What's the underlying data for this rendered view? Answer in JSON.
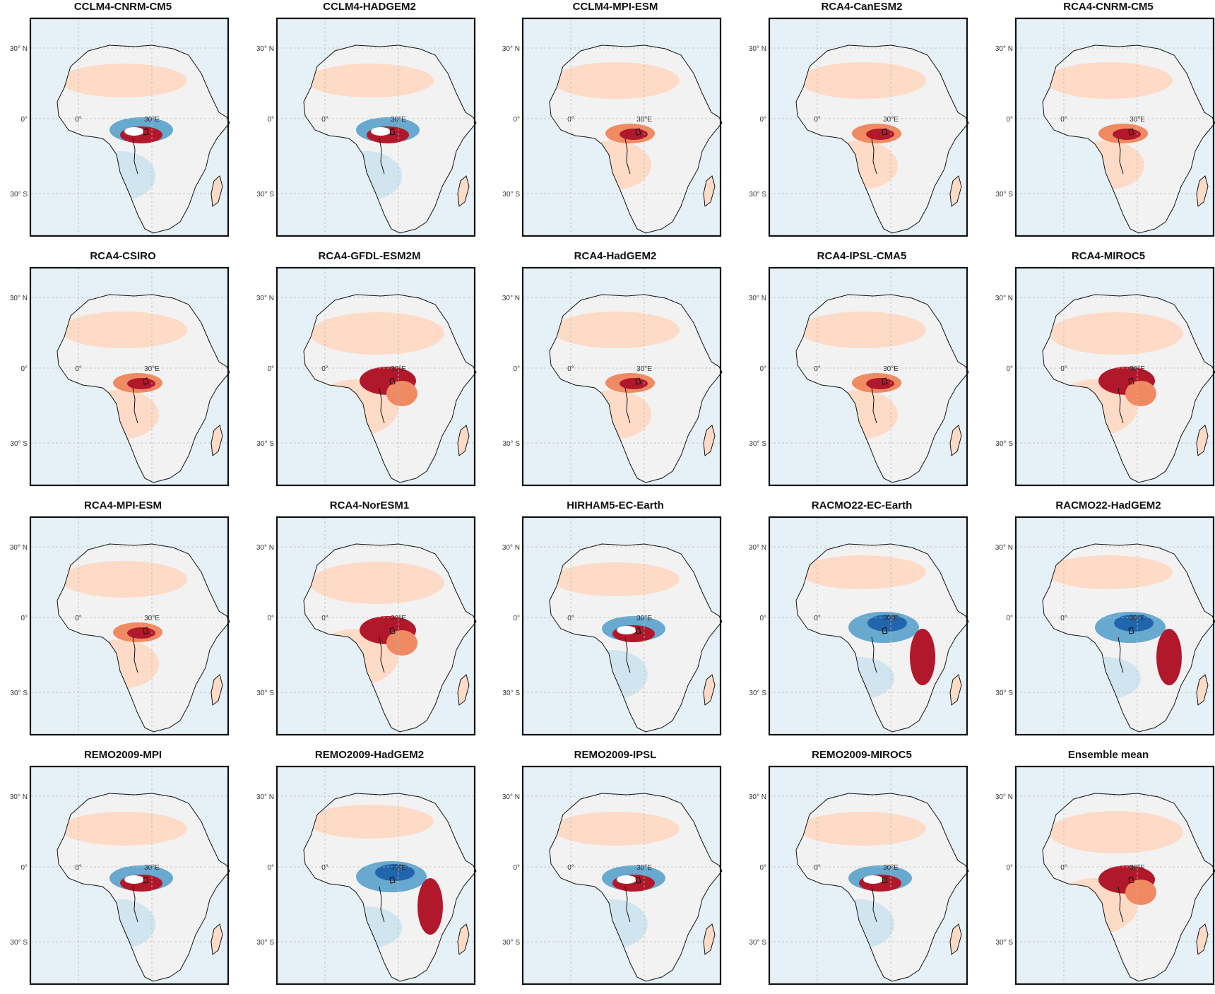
{
  "figure": {
    "panels": [
      {
        "title": "CCLM4-CNRM-CM5",
        "pattern": "mixed"
      },
      {
        "title": "CCLM4-HADGEM2",
        "pattern": "mixed"
      },
      {
        "title": "CCLM4-MPI-ESM",
        "pattern": "wet"
      },
      {
        "title": "RCA4-CanESM2",
        "pattern": "wet"
      },
      {
        "title": "RCA4-CNRM-CM5",
        "pattern": "wet"
      },
      {
        "title": "RCA4-CSIRO",
        "pattern": "wet"
      },
      {
        "title": "RCA4-GFDL-ESM2M",
        "pattern": "strong-wet"
      },
      {
        "title": "RCA4-HadGEM2",
        "pattern": "wet"
      },
      {
        "title": "RCA4-IPSL-CMA5",
        "pattern": "wet"
      },
      {
        "title": "RCA4-MIROC5",
        "pattern": "strong-wet"
      },
      {
        "title": "RCA4-MPI-ESM",
        "pattern": "wet"
      },
      {
        "title": "RCA4-NorESM1",
        "pattern": "strong-wet"
      },
      {
        "title": "HIRHAM5-EC-Earth",
        "pattern": "mixed"
      },
      {
        "title": "RACMO22-EC-Earth",
        "pattern": "dry"
      },
      {
        "title": "RACMO22-HadGEM2",
        "pattern": "dry"
      },
      {
        "title": "REMO2009-MPI",
        "pattern": "mixed"
      },
      {
        "title": "REMO2009-HadGEM2",
        "pattern": "dry"
      },
      {
        "title": "REMO2009-IPSL",
        "pattern": "mixed"
      },
      {
        "title": "REMO2009-MIROC5",
        "pattern": "mixed"
      },
      {
        "title": "Ensemble mean",
        "pattern": "strong-wet"
      }
    ],
    "axis_labels": {
      "lat_north": "30° N",
      "equator": "0°",
      "lat_south": "30° S",
      "lon_zero": "0°",
      "lon_30": "30°E"
    },
    "colors": {
      "strong_wet": "#b2182b",
      "wet": "#ef8a62",
      "light_wet": "#fddbc7",
      "neutral": "#f2f2f2",
      "light_dry": "#d1e5f0",
      "dry": "#67a9cf",
      "strong_dry": "#2166ac"
    }
  }
}
